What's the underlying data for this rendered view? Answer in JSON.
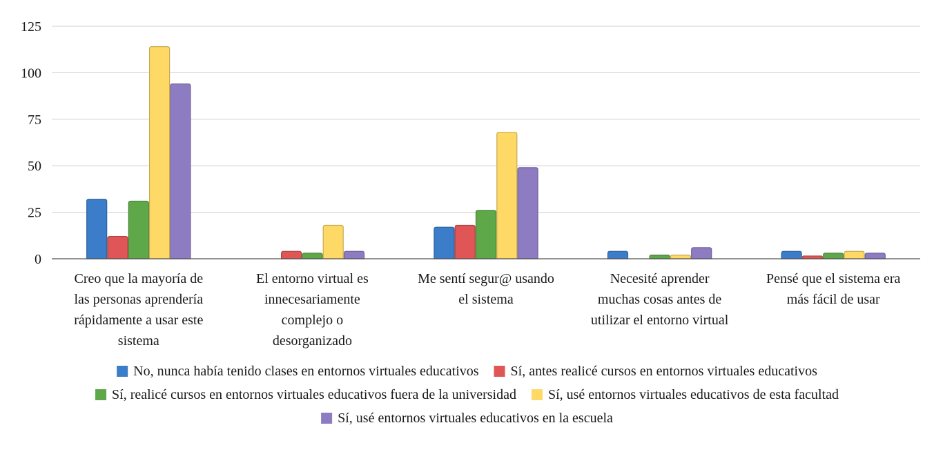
{
  "chart_data": {
    "type": "bar",
    "categories": [
      [
        "Creo que la mayoría de",
        "las personas aprendería",
        "rápidamente a usar este",
        "sistema"
      ],
      [
        "El entorno virtual es",
        "innecesariamente",
        "complejo o",
        "desorganizado"
      ],
      [
        "Me sentí segur@ usando",
        "el sistema"
      ],
      [
        "Necesité aprender",
        "muchas cosas antes de",
        "utilizar el entorno virtual"
      ],
      [
        "Pensé que el sistema era",
        "más fácil de usar"
      ]
    ],
    "series": [
      {
        "name": "No, nunca había tenido clases en entornos virtuales educativos",
        "color": "#3b7dc8",
        "values": [
          32,
          0,
          17,
          4,
          4
        ]
      },
      {
        "name": "Sí, antes realicé cursos en entornos virtuales educativos",
        "color": "#e05555",
        "values": [
          12,
          4,
          18,
          0,
          1.5
        ]
      },
      {
        "name": "Sí, realicé cursos en entornos virtuales educativos fuera de la universidad",
        "color": "#5fa84a",
        "values": [
          31,
          3,
          26,
          2,
          3
        ]
      },
      {
        "name": "Sí, usé entornos virtuales educativos de esta facultad",
        "color": "#ffd966",
        "values": [
          114,
          18,
          68,
          2,
          4
        ]
      },
      {
        "name": "Sí, usé entornos virtuales educativos en la escuela",
        "color": "#8e7cc3",
        "values": [
          94,
          4,
          49,
          6,
          3
        ]
      }
    ],
    "yticks": [
      0,
      25,
      50,
      75,
      100,
      125
    ],
    "ylim": [
      0,
      125
    ],
    "grid": true,
    "legend": "bottom"
  }
}
